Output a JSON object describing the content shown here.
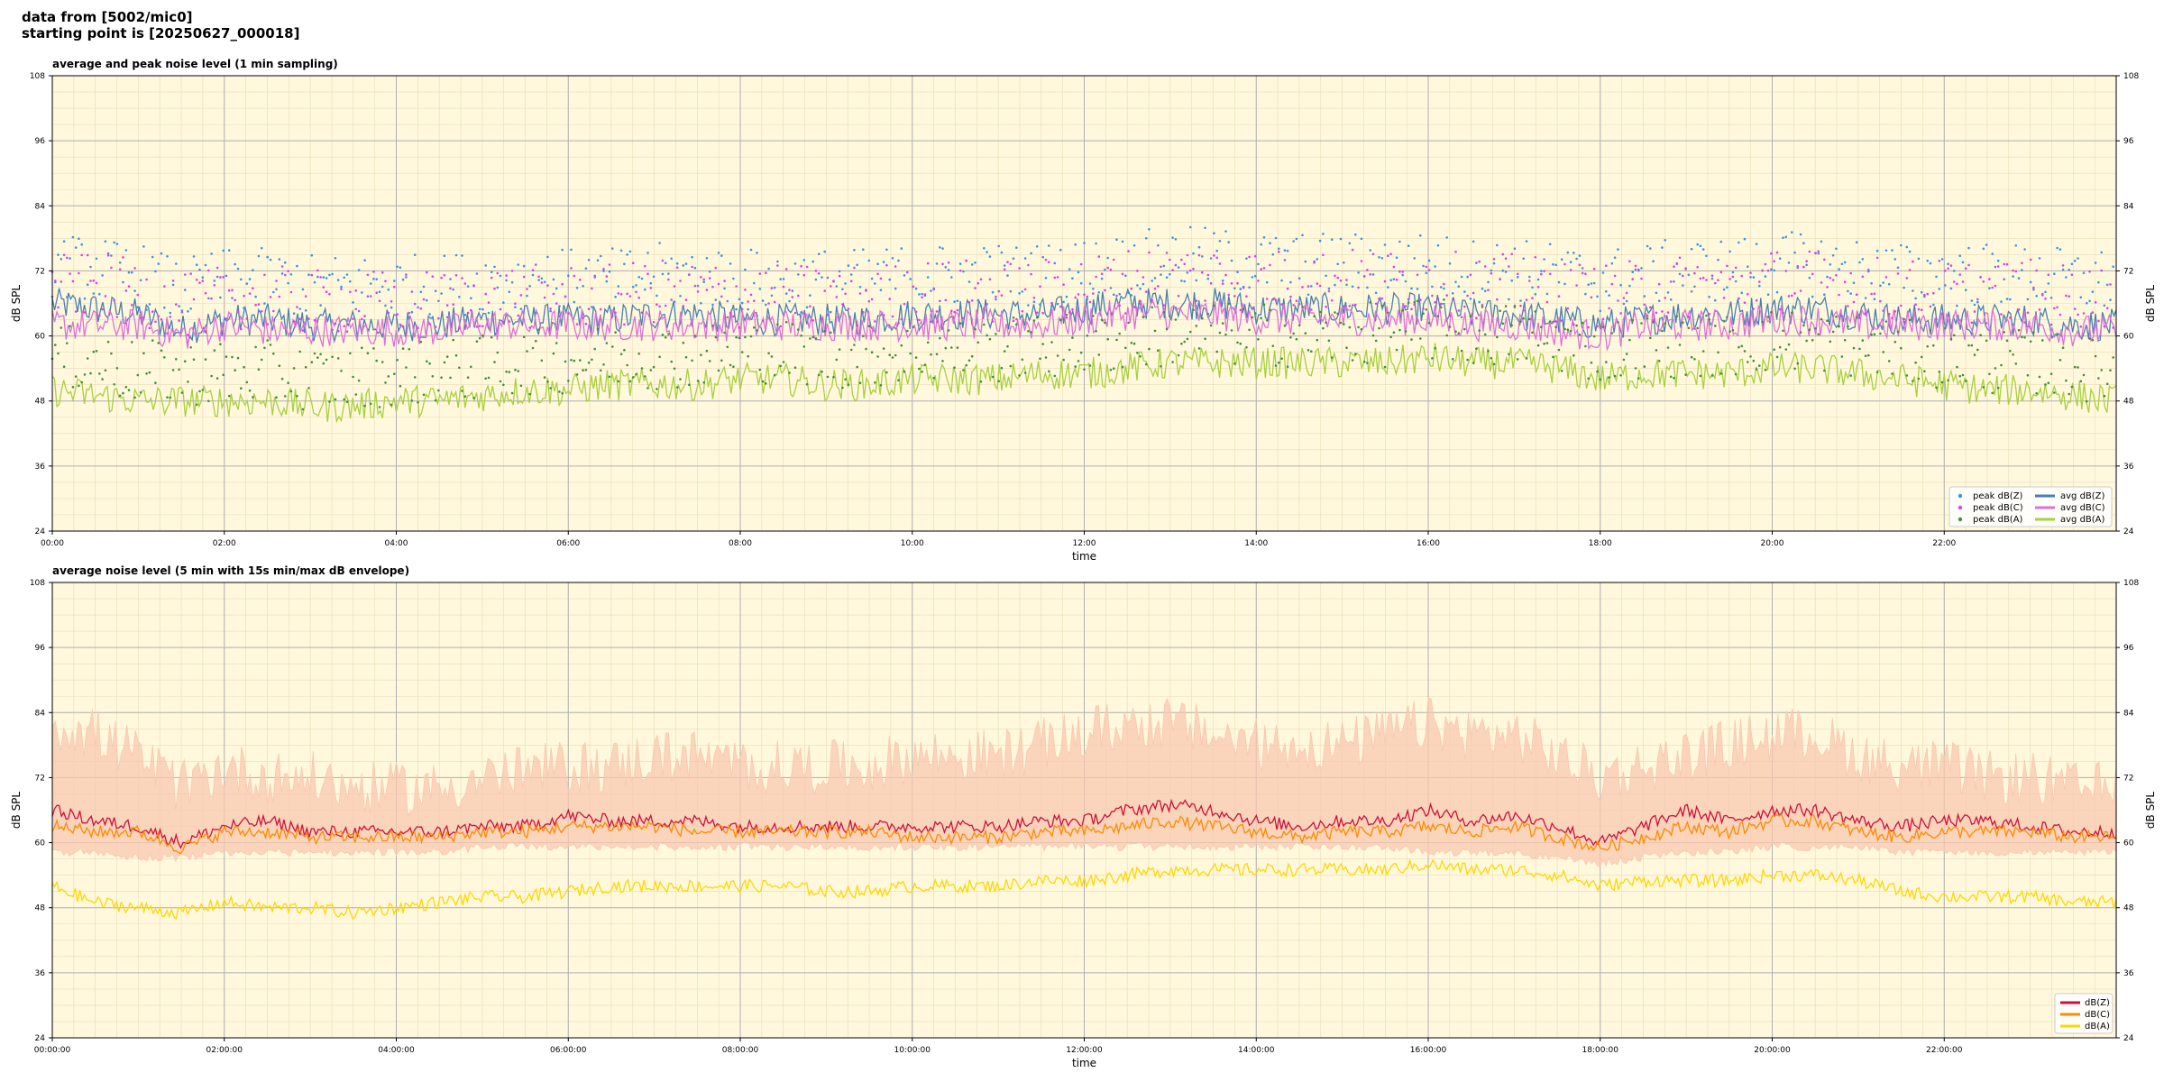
{
  "header": {
    "line1": "data from [5002/mic0]",
    "line2": "starting point is [20250627_000018]"
  },
  "colors": {
    "plot_bg": "#fff8dc",
    "grid_major": "#b0b0b0",
    "grid_minor": "#e8dcb8",
    "zpeak": "#3a96e0",
    "cpeak": "#e040e0",
    "apeak": "#3f8f3f",
    "zavg": "#4a7fb0",
    "cavg": "#e070d8",
    "aavg": "#a8d040",
    "z5": "#d0103a",
    "c5": "#ff8a00",
    "a5": "#ffd700",
    "envelope": "#f8c8b0"
  },
  "chart_data": [
    {
      "type": "line",
      "title": "average and peak noise level (1 min sampling)",
      "xlabel": "time",
      "ylabel": "dB SPL",
      "xlim": [
        0,
        24
      ],
      "ylim": [
        24,
        108
      ],
      "yticks": [
        "24",
        "36",
        "48",
        "60",
        "72",
        "84",
        "96",
        "108"
      ],
      "xticks": [
        "00:00",
        "02:00",
        "04:00",
        "06:00",
        "08:00",
        "10:00",
        "12:00",
        "14:00",
        "16:00",
        "18:00",
        "20:00",
        "22:00"
      ],
      "grid": true,
      "legend": "bottom-right",
      "x": [
        0,
        0.5,
        1,
        1.5,
        2,
        2.5,
        3,
        3.5,
        4,
        4.5,
        5,
        5.5,
        6,
        6.5,
        7,
        7.5,
        8,
        8.5,
        9,
        9.5,
        10,
        10.5,
        11,
        11.5,
        12,
        12.5,
        13,
        13.5,
        14,
        14.5,
        15,
        15.5,
        16,
        16.5,
        17,
        17.5,
        18,
        18.5,
        19,
        19.5,
        20,
        20.5,
        21,
        21.5,
        22,
        22.5,
        23,
        23.5,
        24
      ],
      "series": [
        {
          "name": "avg dB(Z)",
          "style": "line",
          "values": [
            66,
            65,
            64,
            61,
            63,
            63,
            62,
            62,
            62,
            62,
            63,
            63,
            63,
            63,
            64,
            64,
            63,
            63,
            63,
            63,
            64,
            64,
            64,
            64,
            65,
            66,
            66,
            66,
            65,
            65,
            65,
            65,
            65,
            64,
            64,
            63,
            62,
            63,
            64,
            64,
            65,
            65,
            64,
            63,
            63,
            63,
            63,
            62,
            62
          ]
        },
        {
          "name": "avg dB(C)",
          "style": "line",
          "values": [
            62,
            62,
            62,
            60,
            62,
            61,
            61,
            61,
            61,
            61,
            62,
            62,
            62,
            62,
            62,
            62,
            62,
            62,
            62,
            62,
            62,
            62,
            62,
            62,
            63,
            64,
            64,
            64,
            63,
            63,
            63,
            63,
            63,
            62,
            62,
            61,
            60,
            62,
            62,
            62,
            63,
            63,
            62,
            62,
            62,
            62,
            62,
            61,
            61
          ]
        },
        {
          "name": "avg dB(A)",
          "style": "line",
          "values": [
            50,
            49,
            48,
            48,
            48,
            48,
            47,
            47,
            48,
            48,
            49,
            50,
            50,
            51,
            51,
            51,
            52,
            52,
            51,
            51,
            52,
            52,
            52,
            53,
            53,
            54,
            55,
            55,
            55,
            55,
            55,
            55,
            56,
            55,
            55,
            54,
            52,
            53,
            53,
            53,
            54,
            54,
            53,
            52,
            51,
            50,
            50,
            49,
            48
          ]
        },
        {
          "name": "peak dB(Z)",
          "style": "scatter",
          "values": [
            72,
            71,
            70,
            67,
            69,
            69,
            68,
            68,
            68,
            68,
            69,
            69,
            69,
            69,
            70,
            70,
            69,
            69,
            69,
            69,
            70,
            70,
            70,
            70,
            71,
            72,
            73,
            73,
            72,
            72,
            72,
            72,
            72,
            71,
            71,
            70,
            69,
            70,
            71,
            71,
            72,
            72,
            71,
            70,
            70,
            70,
            70,
            69,
            69
          ]
        },
        {
          "name": "peak dB(C)",
          "style": "scatter",
          "values": [
            68,
            68,
            67,
            64,
            66,
            66,
            65,
            65,
            65,
            65,
            66,
            66,
            66,
            66,
            67,
            67,
            66,
            66,
            66,
            66,
            67,
            67,
            67,
            67,
            68,
            69,
            70,
            70,
            69,
            69,
            69,
            69,
            69,
            68,
            68,
            67,
            66,
            67,
            68,
            68,
            69,
            69,
            68,
            67,
            67,
            67,
            67,
            66,
            66
          ]
        },
        {
          "name": "peak dB(A)",
          "style": "scatter",
          "values": [
            55,
            54,
            52,
            52,
            52,
            52,
            51,
            51,
            52,
            52,
            53,
            54,
            54,
            55,
            55,
            55,
            56,
            56,
            55,
            55,
            56,
            56,
            56,
            57,
            57,
            58,
            59,
            59,
            59,
            59,
            59,
            59,
            60,
            59,
            59,
            58,
            56,
            57,
            57,
            57,
            58,
            58,
            57,
            56,
            55,
            54,
            54,
            53,
            52
          ]
        }
      ]
    },
    {
      "type": "line",
      "title": "average noise level (5 min with 15s min/max dB envelope)",
      "xlabel": "time",
      "ylabel": "dB SPL",
      "xlim": [
        0,
        24
      ],
      "ylim": [
        24,
        108
      ],
      "yticks": [
        "24",
        "36",
        "48",
        "60",
        "72",
        "84",
        "96",
        "108"
      ],
      "xticks": [
        "00:00:00",
        "02:00:00",
        "04:00:00",
        "06:00:00",
        "08:00:00",
        "10:00:00",
        "12:00:00",
        "14:00:00",
        "16:00:00",
        "18:00:00",
        "20:00:00",
        "22:00:00"
      ],
      "grid": true,
      "legend": "bottom-right",
      "x": [
        0,
        0.5,
        1,
        1.5,
        2,
        2.5,
        3,
        3.5,
        4,
        4.5,
        5,
        5.5,
        6,
        6.5,
        7,
        7.5,
        8,
        8.5,
        9,
        9.5,
        10,
        10.5,
        11,
        11.5,
        12,
        12.5,
        13,
        13.5,
        14,
        14.5,
        15,
        15.5,
        16,
        16.5,
        17,
        17.5,
        18,
        18.5,
        19,
        19.5,
        20,
        20.5,
        21,
        21.5,
        22,
        22.5,
        23,
        23.5,
        24
      ],
      "envelope_max": [
        80,
        78,
        74,
        68,
        72,
        70,
        70,
        68,
        68,
        68,
        70,
        71,
        72,
        72,
        74,
        74,
        72,
        72,
        72,
        72,
        74,
        74,
        74,
        76,
        78,
        80,
        80,
        78,
        76,
        76,
        76,
        78,
        80,
        78,
        78,
        74,
        70,
        72,
        74,
        76,
        78,
        78,
        74,
        72,
        72,
        70,
        70,
        68,
        68
      ],
      "envelope_min": [
        59,
        59,
        58,
        58,
        59,
        59,
        59,
        59,
        59,
        59,
        60,
        60,
        60,
        60,
        60,
        60,
        60,
        60,
        60,
        60,
        60,
        60,
        60,
        60,
        60,
        60,
        60,
        60,
        60,
        60,
        60,
        60,
        59,
        59,
        59,
        58,
        57,
        58,
        59,
        59,
        60,
        60,
        60,
        59,
        59,
        59,
        59,
        59,
        59
      ],
      "series": [
        {
          "name": "dB(Z)",
          "style": "line",
          "values": [
            66,
            64,
            63,
            60,
            63,
            64,
            62,
            62,
            62,
            62,
            63,
            63,
            65,
            64,
            64,
            64,
            63,
            63,
            63,
            63,
            63,
            63,
            63,
            64,
            64,
            66,
            67,
            66,
            64,
            63,
            64,
            64,
            66,
            64,
            65,
            63,
            60,
            63,
            66,
            64,
            66,
            66,
            64,
            63,
            64,
            64,
            63,
            62,
            62
          ]
        },
        {
          "name": "dB(C)",
          "style": "line",
          "values": [
            63,
            62,
            62,
            59,
            62,
            62,
            61,
            61,
            61,
            61,
            62,
            62,
            63,
            63,
            63,
            62,
            62,
            62,
            62,
            62,
            61,
            61,
            61,
            62,
            62,
            63,
            64,
            63,
            62,
            61,
            62,
            62,
            63,
            62,
            63,
            61,
            59,
            61,
            63,
            62,
            64,
            64,
            62,
            61,
            62,
            62,
            62,
            61,
            61
          ]
        },
        {
          "name": "dB(A)",
          "style": "line",
          "values": [
            52,
            49,
            48,
            47,
            49,
            48,
            48,
            47,
            48,
            49,
            50,
            50,
            51,
            52,
            52,
            52,
            52,
            52,
            51,
            51,
            52,
            52,
            52,
            53,
            53,
            54,
            55,
            55,
            55,
            55,
            55,
            55,
            56,
            55,
            55,
            54,
            52,
            53,
            53,
            53,
            54,
            54,
            53,
            51,
            50,
            50,
            50,
            49,
            49
          ]
        }
      ]
    }
  ]
}
